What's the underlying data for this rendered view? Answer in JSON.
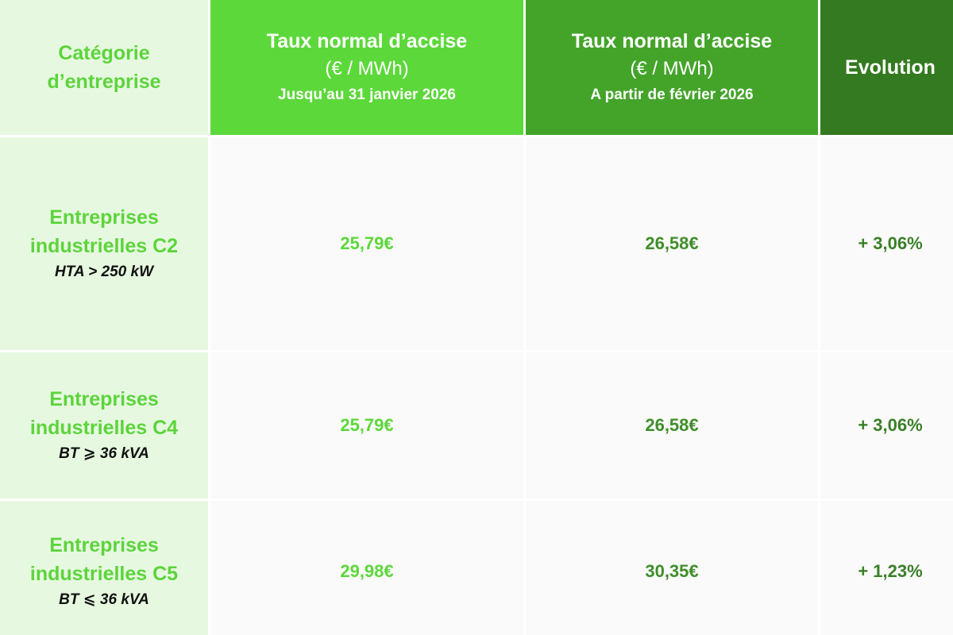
{
  "header": {
    "category": {
      "line1": "Catégorie",
      "line2": "d’entreprise"
    },
    "rate_old": {
      "title": "Taux normal d’accise",
      "unit": "(€ / MWh)",
      "period": "Jusqu’au 31 janvier 2026"
    },
    "rate_new": {
      "title": "Taux normal d’accise",
      "unit": "(€ / MWh)",
      "period": "A partir de février 2026"
    },
    "evolution": "Evolution"
  },
  "rows": [
    {
      "name_line1": "Entreprises",
      "name_line2": "industrielles C2",
      "detail": "HTA > 250 kW",
      "rate_old": "25,79€",
      "rate_new": "26,58€",
      "evolution": "+ 3,06%"
    },
    {
      "name_line1": "Entreprises",
      "name_line2": "industrielles C4",
      "detail": "BT ⩾ 36 kVA",
      "rate_old": "25,79€",
      "rate_new": "26,58€",
      "evolution": "+ 3,06%"
    },
    {
      "name_line1": "Entreprises",
      "name_line2": "industrielles C5",
      "detail": "BT ⩽ 36 kVA",
      "rate_old": "29,98€",
      "rate_new": "30,35€",
      "evolution": "+ 1,23%"
    }
  ],
  "colors": {
    "header_category_bg": "#e6f9e0",
    "header_old_bg": "#5cd83a",
    "header_new_bg": "#44a42a",
    "header_evolution_bg": "#347a20",
    "category_text": "#5dd43c",
    "body_bg": "#fafafa"
  }
}
